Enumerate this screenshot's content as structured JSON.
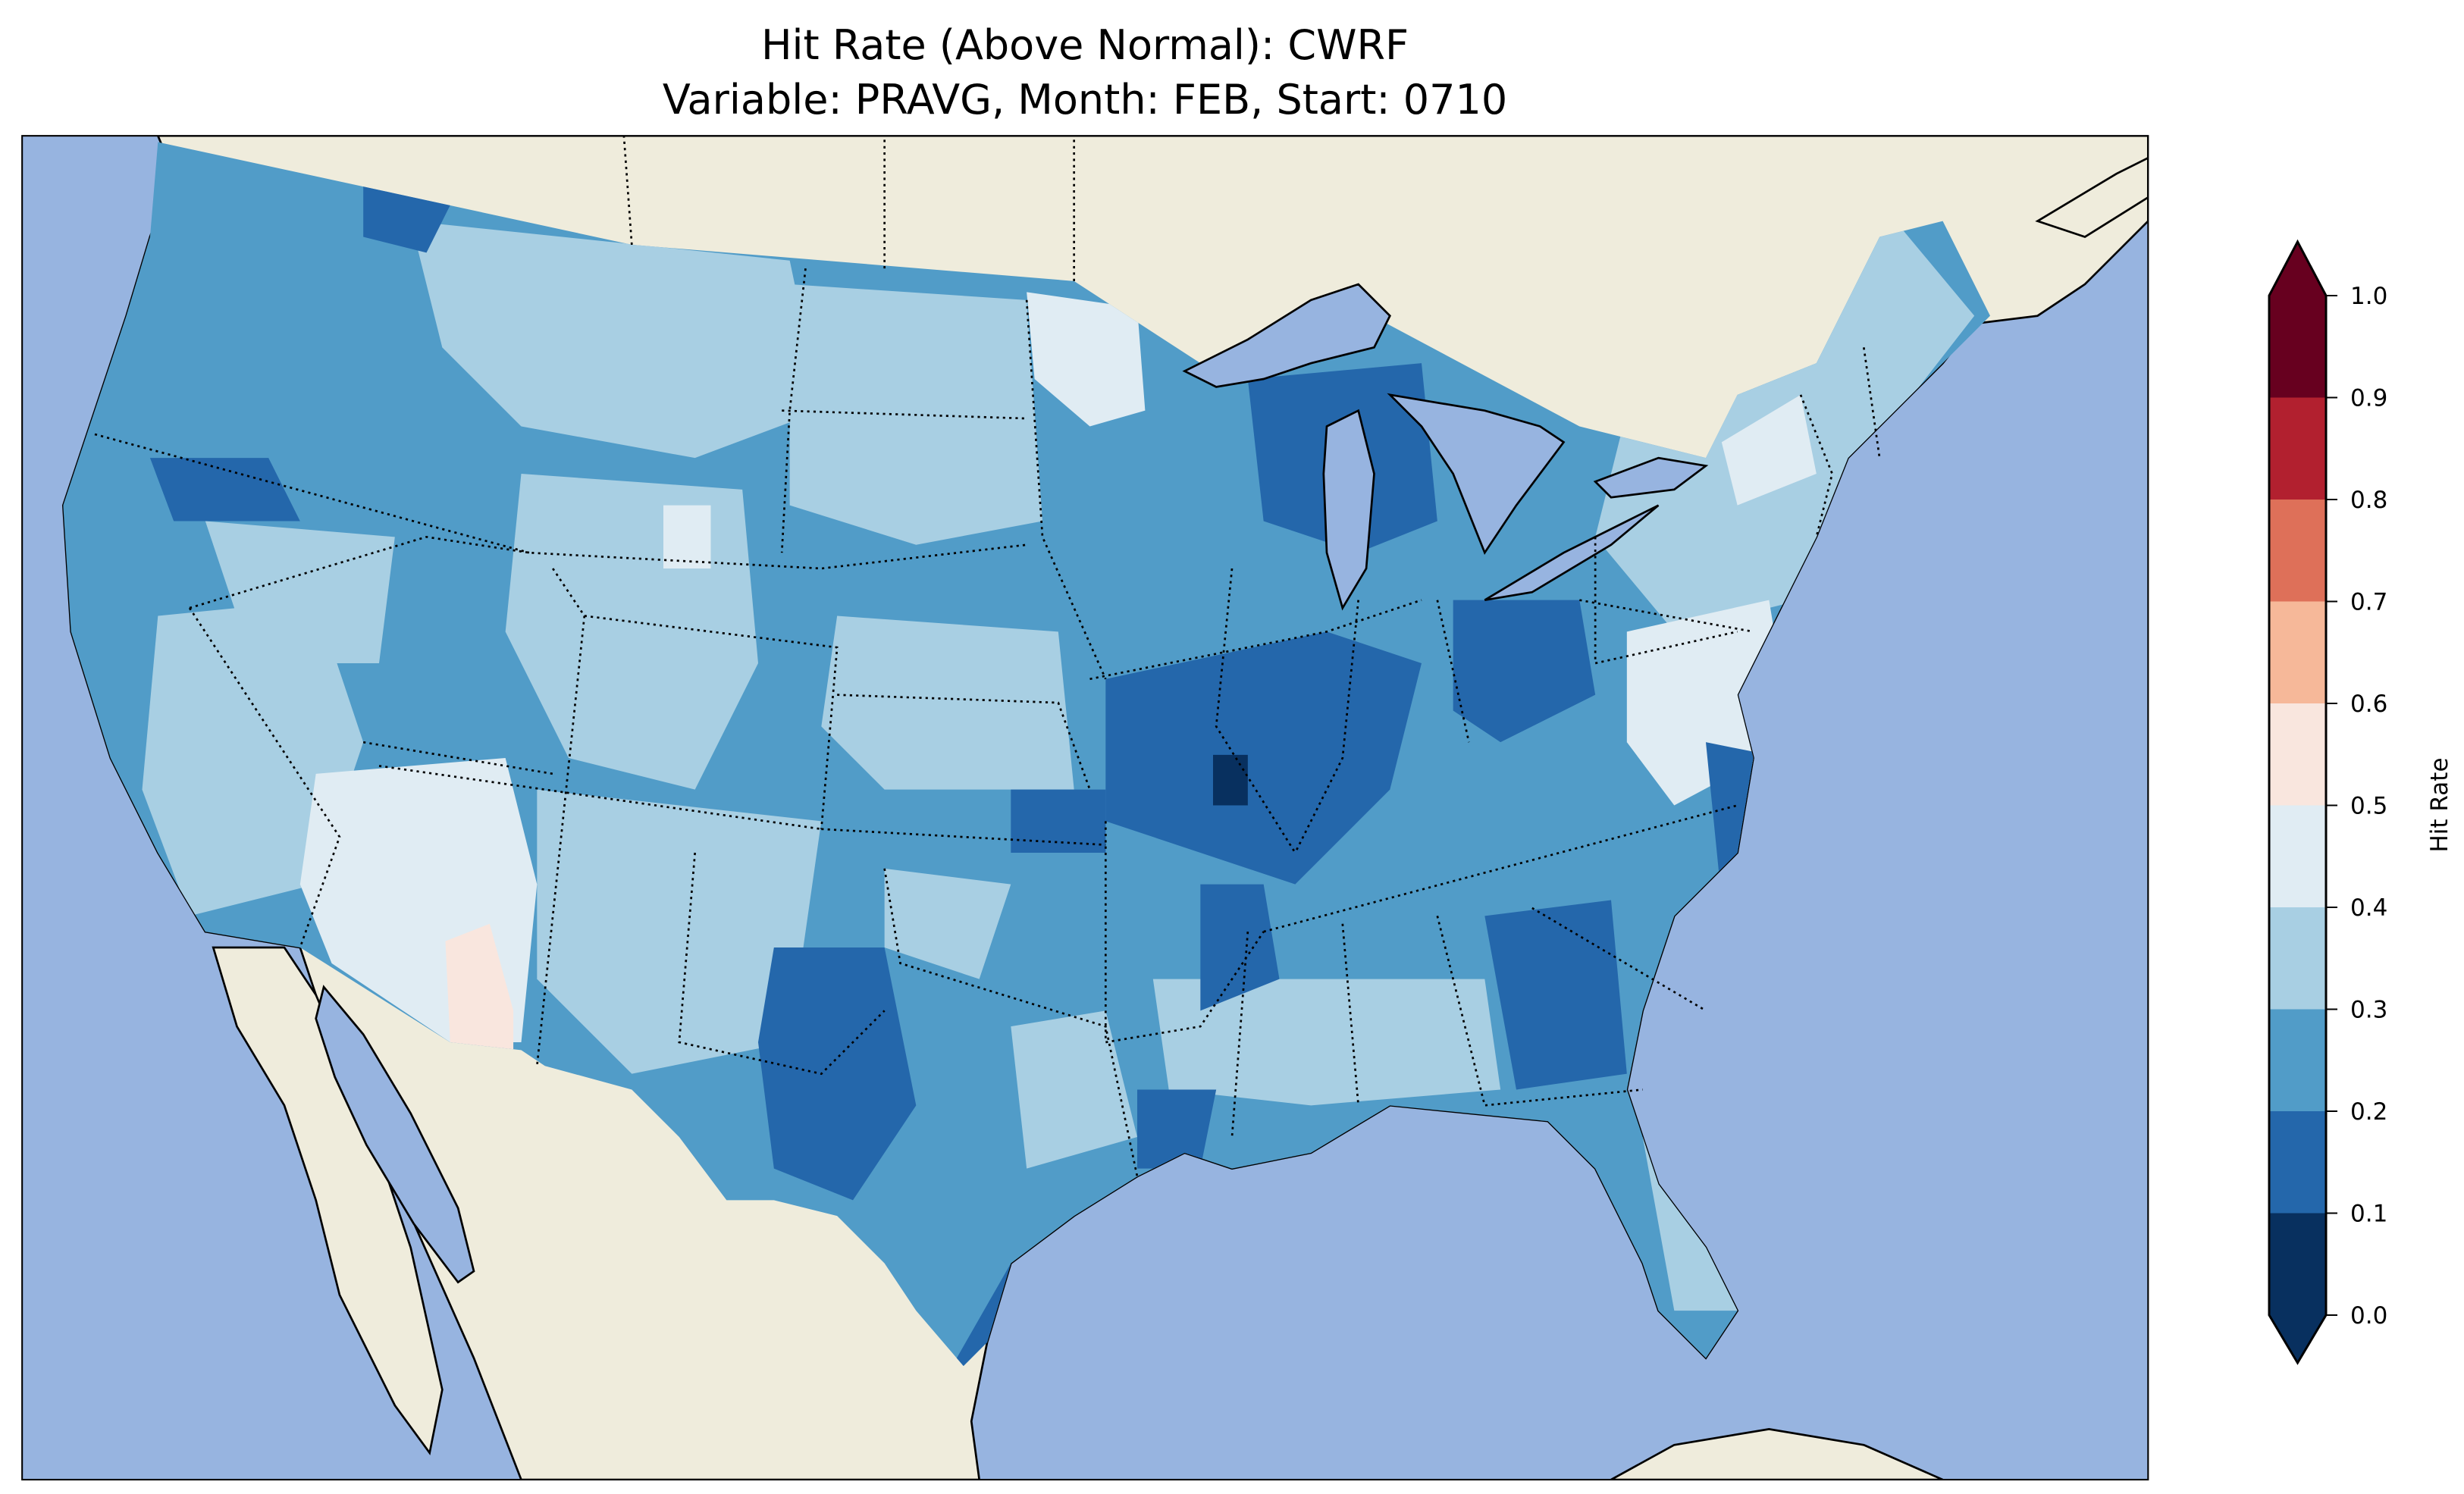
{
  "title": {
    "line1": "Hit Rate (Above Normal): CWRF",
    "line2": "Variable: PRAVG, Month: FEB, Start: 0710"
  },
  "colors": {
    "ocean": "#97b4e0",
    "land": "#efecdc",
    "lakes": "#97b4e0"
  },
  "colorbar": {
    "label": "Hit Rate",
    "ticks": [
      "0.0",
      "0.1",
      "0.2",
      "0.3",
      "0.4",
      "0.5",
      "0.6",
      "0.7",
      "0.8",
      "0.9",
      "1.0"
    ],
    "levels": [
      0,
      0.1,
      0.2,
      0.3,
      0.4,
      0.5,
      0.6,
      0.7,
      0.8,
      0.9,
      1.0
    ],
    "colors": [
      "#08305f",
      "#2467ab",
      "#519cc8",
      "#a8cfe3",
      "#e0ecf3",
      "#f9e6de",
      "#f6b899",
      "#de7059",
      "#b2202f",
      "#67001f"
    ],
    "extend": "both"
  }
}
